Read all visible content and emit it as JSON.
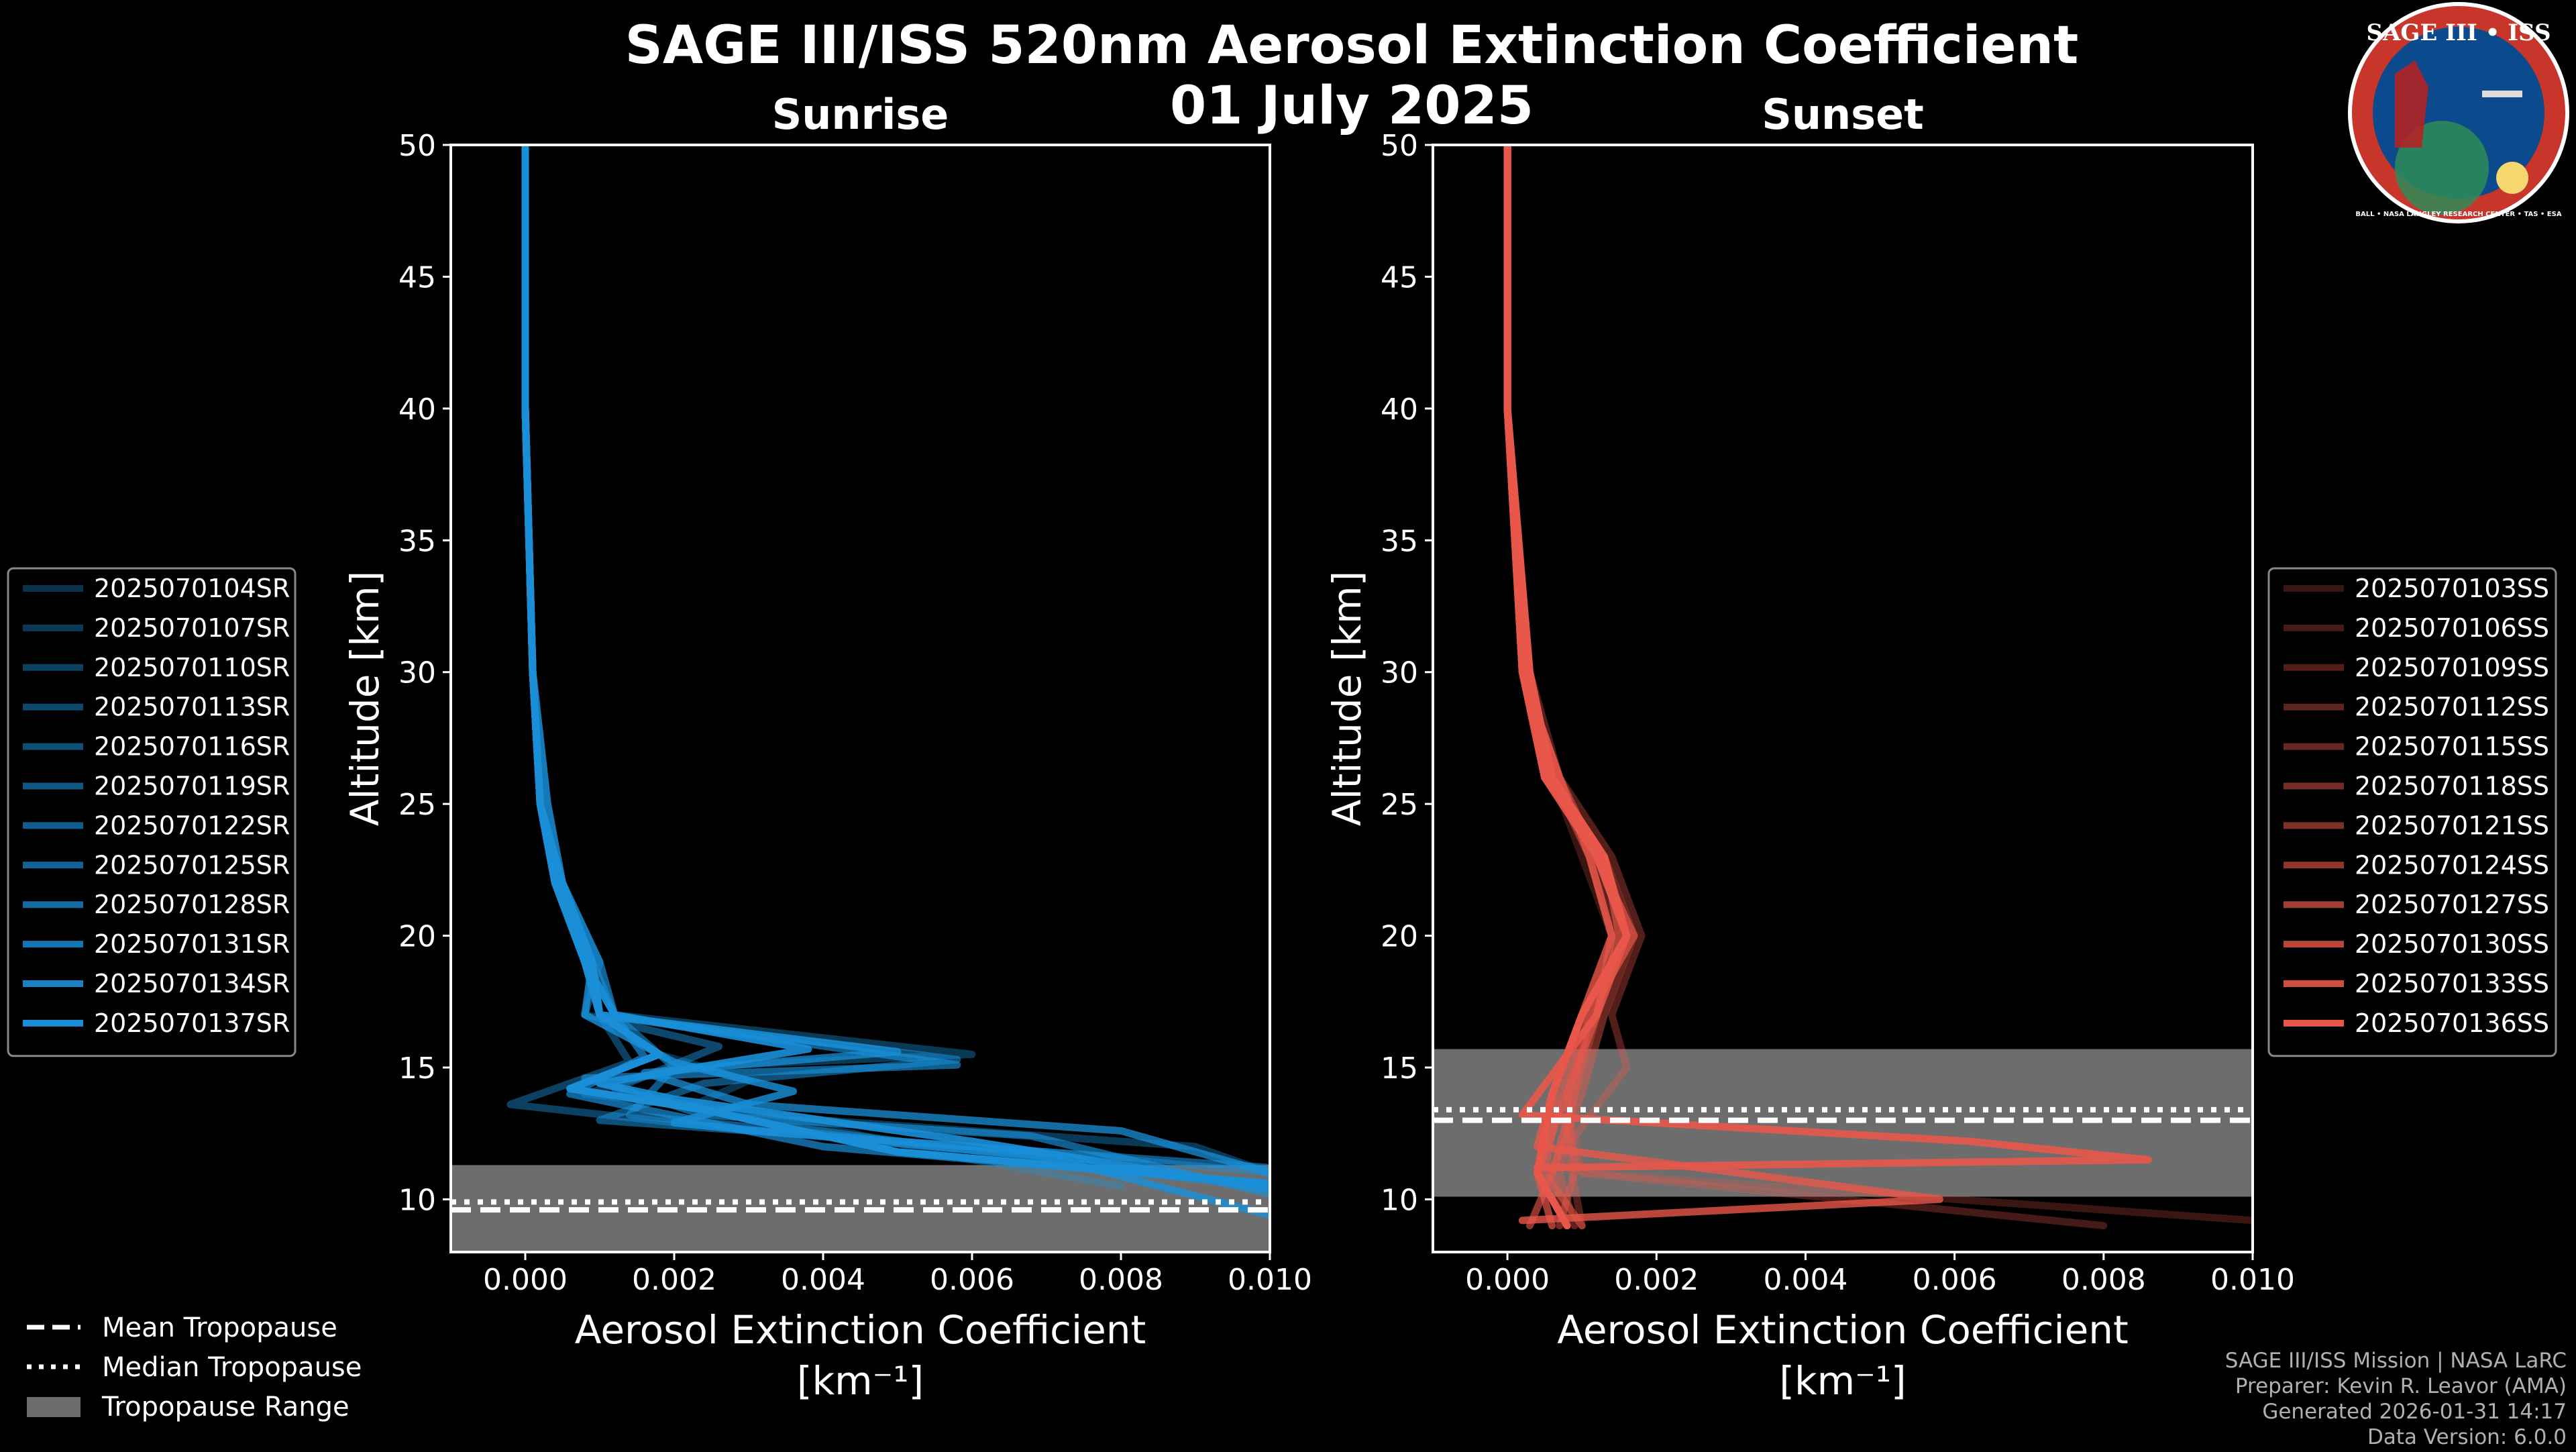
{
  "title_line1": "SAGE III/ISS 520nm Aerosol Extinction Coefficient",
  "title_line2": "01 July 2025",
  "logo": {
    "text_top": "SAGE III • ISS",
    "ring_text": "BALL • NASA LANGLEY RESEARCH CENTER • TAS • ESA",
    "colors": {
      "ring": "#c8352b",
      "inner": "#0b4a8c",
      "text": "#ffffff"
    }
  },
  "footer": {
    "line1": "SAGE III/ISS Mission | NASA LaRC",
    "line2": "Preparer: Kevin R. Leavor (AMA)",
    "line3": "Generated 2026-01-31 14:17",
    "line4": "Data Version: 6.0.0"
  },
  "bottom_legend": [
    {
      "label": "Mean Tropopause",
      "style": "dashed"
    },
    {
      "label": "Median Tropopause",
      "style": "dotted"
    },
    {
      "label": "Tropopause Range",
      "style": "patch"
    }
  ],
  "chart_data": [
    {
      "type": "line",
      "panel": "left",
      "title": "Sunrise",
      "xlabel": "Aerosol Extinction Coefficient",
      "xunit": "[km⁻¹]",
      "ylabel": "Altitude [km]",
      "xlim": [
        -0.001,
        0.01
      ],
      "ylim": [
        8,
        50
      ],
      "xticks": [
        0.0,
        0.002,
        0.004,
        0.006,
        0.008,
        0.01
      ],
      "xtick_labels": [
        "0.000",
        "0.002",
        "0.004",
        "0.006",
        "0.008",
        "0.010"
      ],
      "yticks": [
        10,
        15,
        20,
        25,
        30,
        35,
        40,
        45,
        50
      ],
      "ytick_labels": [
        "10",
        "15",
        "20",
        "25",
        "30",
        "35",
        "40",
        "45",
        "50"
      ],
      "legend_position": "left",
      "color": "#1a8fd8",
      "tropopause": {
        "min": 8.0,
        "max": 11.3,
        "mean": 9.6,
        "median": 9.9
      },
      "series": [
        {
          "name": "2025070104SR",
          "alpha": 0.35,
          "x": [
            0.0,
            0.0,
            0.0001,
            0.0002,
            0.0004,
            0.0008,
            0.001,
            0.0018,
            0.003,
            0.0022,
            0.0044,
            0.006,
            0.008
          ],
          "y": [
            50,
            40,
            30,
            25,
            22,
            19,
            17,
            15.5,
            14.5,
            13.5,
            12.5,
            11.5,
            10.5
          ]
        },
        {
          "name": "2025070107SR",
          "alpha": 0.4,
          "x": [
            0.0,
            0.0,
            0.0001,
            0.0002,
            0.0004,
            0.0008,
            0.0012,
            0.006,
            0.002,
            0.0008,
            0.004,
            0.009,
            0.01
          ],
          "y": [
            50,
            40,
            30,
            25,
            22,
            19,
            17,
            15.5,
            15,
            14,
            13,
            12,
            11
          ]
        },
        {
          "name": "2025070110SR",
          "alpha": 0.45,
          "x": [
            0.0,
            0.0,
            0.0001,
            0.0002,
            0.0005,
            0.0009,
            0.001,
            0.0014,
            -0.0002,
            0.003,
            0.007,
            0.01
          ],
          "y": [
            50,
            40,
            30,
            25,
            22,
            19,
            17,
            15.2,
            13.6,
            12.6,
            11.8,
            11
          ]
        },
        {
          "name": "2025070113SR",
          "alpha": 0.5,
          "x": [
            0.0,
            0.0,
            0.0001,
            0.0003,
            0.0005,
            0.001,
            0.0008,
            0.0026,
            0.0012,
            0.0034,
            0.01
          ],
          "y": [
            50,
            40,
            30,
            25,
            22,
            19,
            17,
            15.8,
            14.2,
            12.8,
            10.4
          ]
        },
        {
          "name": "2025070116SR",
          "alpha": 0.55,
          "x": [
            0.0,
            0.0,
            0.0001,
            0.0002,
            0.0004,
            0.0008,
            0.001,
            0.0058,
            0.0024,
            0.001,
            0.006,
            0.0096
          ],
          "y": [
            50,
            40,
            30,
            25,
            22,
            19,
            17,
            15.3,
            14.4,
            13.0,
            12.0,
            10.6
          ]
        },
        {
          "name": "2025070119SR",
          "alpha": 0.6,
          "x": [
            0.0,
            0.0,
            0.0001,
            0.0002,
            0.0005,
            0.0009,
            0.0012,
            0.002,
            0.0014,
            0.005,
            0.01
          ],
          "y": [
            50,
            40,
            30,
            25,
            22,
            19,
            17,
            15,
            13.2,
            12.2,
            11.2
          ]
        },
        {
          "name": "2025070122SR",
          "alpha": 0.65,
          "x": [
            0.0,
            0.0,
            0.0001,
            0.0002,
            0.0004,
            0.0008,
            0.001,
            0.0058,
            0.0008,
            0.0024,
            0.0068,
            0.01
          ],
          "y": [
            50,
            40,
            30,
            25,
            22,
            19,
            17,
            15.1,
            14.6,
            13.2,
            12.4,
            10.2
          ]
        },
        {
          "name": "2025070125SR",
          "alpha": 0.7,
          "x": [
            0.0,
            0.0,
            0.0001,
            0.0003,
            0.0005,
            0.001,
            0.0012,
            0.0016,
            0.0006,
            0.004,
            0.009
          ],
          "y": [
            50,
            40,
            30,
            25,
            22,
            19,
            17,
            15.4,
            14.0,
            12.0,
            10.8
          ]
        },
        {
          "name": "2025070128SR",
          "alpha": 0.75,
          "x": [
            0.0,
            0.0,
            0.0001,
            0.0002,
            0.0004,
            0.0008,
            0.001,
            0.005,
            0.0016,
            0.003,
            0.008,
            0.01
          ],
          "y": [
            50,
            40,
            30,
            25,
            22,
            19,
            17,
            15.6,
            14.8,
            13.6,
            12.6,
            11.0
          ]
        },
        {
          "name": "2025070131SR",
          "alpha": 0.82,
          "x": [
            0.0,
            0.0,
            0.0001,
            0.0002,
            0.0005,
            0.0009,
            0.0008,
            0.002,
            0.0036,
            0.002,
            0.007,
            0.01
          ],
          "y": [
            50,
            40,
            30,
            25,
            22,
            19,
            17,
            15.2,
            14.1,
            12.9,
            11.6,
            9.4
          ]
        },
        {
          "name": "2025070134SR",
          "alpha": 0.9,
          "x": [
            0.0,
            0.0,
            0.0001,
            0.0002,
            0.0004,
            0.0008,
            0.0012,
            0.0038,
            0.001,
            0.002,
            0.006,
            0.01
          ],
          "y": [
            50,
            40,
            30,
            25,
            22,
            19,
            17,
            15.7,
            14.4,
            13.8,
            12.2,
            10.4
          ]
        },
        {
          "name": "2025070137SR",
          "alpha": 1.0,
          "x": [
            0.0,
            0.0,
            0.0001,
            0.0002,
            0.0004,
            0.0009,
            0.001,
            0.0018,
            0.0006,
            0.0024,
            0.005,
            0.01
          ],
          "y": [
            50,
            40,
            30,
            25,
            22,
            19,
            17,
            15.5,
            14.2,
            13.4,
            11.8,
            10.6
          ]
        }
      ]
    },
    {
      "type": "line",
      "panel": "right",
      "title": "Sunset",
      "xlabel": "Aerosol Extinction Coefficient",
      "xunit": "[km⁻¹]",
      "ylabel": "Altitude [km]",
      "xlim": [
        -0.001,
        0.01
      ],
      "ylim": [
        8,
        50
      ],
      "xticks": [
        0.0,
        0.002,
        0.004,
        0.006,
        0.008,
        0.01
      ],
      "xtick_labels": [
        "0.000",
        "0.002",
        "0.004",
        "0.006",
        "0.008",
        "0.010"
      ],
      "yticks": [
        10,
        15,
        20,
        25,
        30,
        35,
        40,
        45,
        50
      ],
      "ytick_labels": [
        "10",
        "15",
        "20",
        "25",
        "30",
        "35",
        "40",
        "45",
        "50"
      ],
      "legend_position": "right",
      "color": "#e8574a",
      "tropopause": {
        "min": 10.1,
        "max": 15.7,
        "mean": 13.0,
        "median": 13.4
      },
      "series": [
        {
          "name": "2025070103SS",
          "alpha": 0.25,
          "x": [
            0.0,
            0.0,
            0.0002,
            0.0006,
            0.001,
            0.0014,
            0.0012,
            0.0008,
            0.001,
            0.01
          ],
          "y": [
            50,
            40,
            30,
            26,
            23,
            20,
            17,
            14,
            11,
            9.2
          ]
        },
        {
          "name": "2025070106SS",
          "alpha": 0.3,
          "x": [
            0.0,
            0.0,
            0.0002,
            0.0005,
            0.0012,
            0.0016,
            0.001,
            0.0006,
            0.001,
            0.008
          ],
          "y": [
            50,
            40,
            30,
            26,
            23,
            20,
            17,
            14,
            11,
            9.0
          ]
        },
        {
          "name": "2025070109SS",
          "alpha": 0.35,
          "x": [
            0.0,
            0.0,
            0.0003,
            0.0007,
            0.0014,
            0.0018,
            0.0014,
            0.0016,
            0.0008,
            0.001
          ],
          "y": [
            50,
            40,
            30,
            26,
            23,
            20,
            17,
            15,
            12,
            9
          ]
        },
        {
          "name": "2025070112SS",
          "alpha": 0.4,
          "x": [
            0.0,
            0.0,
            0.0002,
            0.0006,
            0.0012,
            0.0015,
            0.0011,
            0.0009,
            0.0007,
            0.0009
          ],
          "y": [
            50,
            40,
            30,
            26,
            23,
            20,
            17,
            14,
            11,
            9
          ]
        },
        {
          "name": "2025070115SS",
          "alpha": 0.45,
          "x": [
            0.0,
            0.0,
            0.0002,
            0.0005,
            0.0013,
            0.0017,
            0.0013,
            0.001,
            0.0006,
            0.0008
          ],
          "y": [
            50,
            40,
            30,
            26,
            23,
            20,
            17,
            14,
            11,
            9
          ]
        },
        {
          "name": "2025070118SS",
          "alpha": 0.5,
          "x": [
            0.0,
            0.0,
            0.0003,
            0.0006,
            0.0011,
            0.0014,
            0.0012,
            0.0008,
            0.0009,
            0.0007
          ],
          "y": [
            50,
            40,
            30,
            26,
            23,
            20,
            17,
            14,
            11,
            9
          ]
        },
        {
          "name": "2025070121SS",
          "alpha": 0.55,
          "x": [
            0.0,
            0.0,
            0.0002,
            0.0007,
            0.0012,
            0.0016,
            0.001,
            0.0007,
            0.0005,
            0.001
          ],
          "y": [
            50,
            40,
            30,
            26,
            23,
            20,
            17,
            14,
            11,
            9
          ]
        },
        {
          "name": "2025070124SS",
          "alpha": 0.62,
          "x": [
            0.0,
            0.0,
            0.0002,
            0.0005,
            0.0013,
            0.0015,
            0.0012,
            0.0009,
            0.0006,
            0.0003
          ],
          "y": [
            50,
            40,
            30,
            26,
            23,
            20,
            17,
            14,
            11,
            9
          ]
        },
        {
          "name": "2025070127SS",
          "alpha": 0.7,
          "x": [
            0.0,
            0.0,
            0.0003,
            0.0006,
            0.0012,
            0.0017,
            0.0011,
            0.0008,
            0.0004,
            0.0006
          ],
          "y": [
            50,
            40,
            30,
            26,
            23,
            20,
            17,
            14,
            11,
            9
          ]
        },
        {
          "name": "2025070130SS",
          "alpha": 0.8,
          "x": [
            0.0,
            0.0,
            0.0002,
            0.0007,
            0.0011,
            0.0014,
            0.001,
            0.0006,
            0.0004,
            0.0058,
            0.0002
          ],
          "y": [
            50,
            40,
            30,
            26,
            23,
            20,
            17,
            14,
            12,
            10.0,
            9.2
          ]
        },
        {
          "name": "2025070133SS",
          "alpha": 0.9,
          "x": [
            0.0,
            0.0,
            0.0002,
            0.0005,
            0.0012,
            0.0016,
            0.0012,
            0.0002,
            0.0062,
            0.0086,
            0.0004
          ],
          "y": [
            50,
            40,
            30,
            26,
            23,
            20,
            17,
            13.2,
            12.2,
            11.5,
            11.2
          ]
        },
        {
          "name": "2025070136SS",
          "alpha": 1.0,
          "x": [
            0.0,
            0.0,
            0.0003,
            0.0006,
            0.0013,
            0.0016,
            0.001,
            0.0006,
            0.0004,
            0.0008
          ],
          "y": [
            50,
            40,
            30,
            26,
            23,
            20,
            17,
            14,
            11,
            9
          ]
        }
      ]
    }
  ]
}
